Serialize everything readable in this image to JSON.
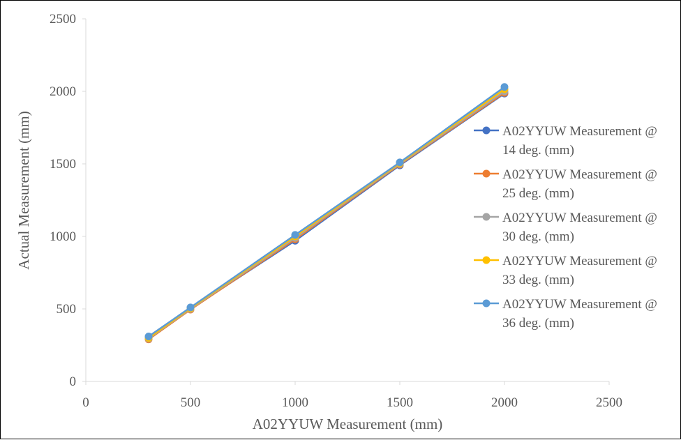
{
  "chart_data": {
    "type": "line",
    "title": "",
    "xlabel": "A02YYUW  Measurement (mm)",
    "ylabel": "Actual Measurement (mm)",
    "xlim": [
      0,
      2500
    ],
    "ylim": [
      0,
      2500
    ],
    "x_ticks": [
      0,
      500,
      1000,
      1500,
      2000,
      2500
    ],
    "y_ticks": [
      0,
      500,
      1000,
      1500,
      2000,
      2500
    ],
    "x_tick_labels": [
      "0",
      "500",
      "1000",
      "1500",
      "2000",
      "2500"
    ],
    "y_tick_labels": [
      "0",
      "500",
      "1000",
      "1500",
      "2000",
      "2500"
    ],
    "grid": false,
    "legend_position": "right",
    "series": [
      {
        "name": "A02YYUW Measurement @ 14 deg.  (mm)",
        "legend_lines": [
          "A02YYUW Measurement @",
          "14 deg.  (mm)"
        ],
        "color": "#4472C4",
        "x": [
          300,
          500,
          1000,
          1500,
          2000
        ],
        "y": [
          300,
          500,
          970,
          1490,
          1985
        ]
      },
      {
        "name": "A02YYUW Measurement @ 25 deg.  (mm)",
        "legend_lines": [
          "A02YYUW Measurement @",
          "25 deg.  (mm)"
        ],
        "color": "#ED7D31",
        "x": [
          300,
          500,
          1000,
          1500,
          2000
        ],
        "y": [
          290,
          495,
          980,
          1495,
          1990
        ]
      },
      {
        "name": "A02YYUW Measurement @ 30 deg.  (mm)",
        "legend_lines": [
          "A02YYUW Measurement @",
          "30 deg.  (mm)"
        ],
        "color": "#A5A5A5",
        "x": [
          300,
          500,
          1000,
          1500,
          2000
        ],
        "y": [
          295,
          500,
          990,
          1500,
          2000
        ]
      },
      {
        "name": "A02YYUW Measurement @ 33 deg.  (mm)",
        "legend_lines": [
          "A02YYUW Measurement @",
          "33 deg.  (mm)"
        ],
        "color": "#FFC000",
        "x": [
          300,
          500,
          1000,
          1500,
          2000
        ],
        "y": [
          300,
          505,
          1000,
          1505,
          2015
        ]
      },
      {
        "name": "A02YYUW Measurement @ 36 deg.  (mm)",
        "legend_lines": [
          "A02YYUW Measurement @",
          "36 deg.  (mm)"
        ],
        "color": "#5B9BD5",
        "x": [
          300,
          500,
          1000,
          1500,
          2000
        ],
        "y": [
          310,
          510,
          1010,
          1510,
          2030
        ]
      }
    ],
    "axis_color": "#D9D9D9",
    "text_color": "#595959"
  }
}
